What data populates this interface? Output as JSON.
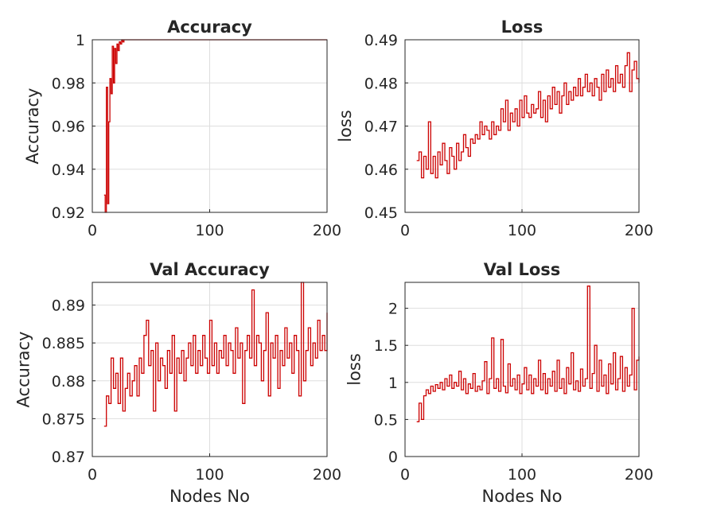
{
  "chart_data": [
    {
      "type": "line",
      "title": "Accuracy",
      "xlabel": "",
      "ylabel": "Accuracy",
      "xlim": [
        0,
        200
      ],
      "ylim": [
        0.92,
        1.0
      ],
      "xticks": [
        0,
        100,
        200
      ],
      "xtick_labels": [
        "0",
        "100",
        "200"
      ],
      "yticks": [
        0.92,
        0.94,
        0.96,
        0.98,
        1.0
      ],
      "ytick_labels": [
        "0.92",
        "0.94",
        "0.96",
        "0.98",
        "1"
      ],
      "grid": true,
      "color": "#cc0000",
      "x": [
        10,
        11,
        12,
        13,
        14,
        15,
        16,
        17,
        18,
        19,
        20,
        21,
        22,
        23,
        24,
        25,
        26,
        27,
        28,
        29,
        30,
        35,
        40,
        50,
        60,
        80,
        100,
        120,
        140,
        160,
        180,
        200
      ],
      "y": [
        0.928,
        0.92,
        0.978,
        0.924,
        0.962,
        0.982,
        0.975,
        0.997,
        0.98,
        0.996,
        0.989,
        0.998,
        0.995,
        0.999,
        0.998,
        1.0,
        0.999,
        1.0,
        1.0,
        1.0,
        1.0,
        1.0,
        1.0,
        1.0,
        1.0,
        1.0,
        1.0,
        1.0,
        1.0,
        1.0,
        1.0,
        1.0
      ]
    },
    {
      "type": "line",
      "title": "Loss",
      "xlabel": "",
      "ylabel": "loss",
      "xlim": [
        0,
        200
      ],
      "ylim": [
        0.45,
        0.49
      ],
      "xticks": [
        0,
        100,
        200
      ],
      "xtick_labels": [
        "0",
        "100",
        "200"
      ],
      "yticks": [
        0.45,
        0.46,
        0.47,
        0.48,
        0.49
      ],
      "ytick_labels": [
        "0.45",
        "0.46",
        "0.47",
        "0.48",
        "0.49"
      ],
      "grid": true,
      "color": "#cc0000",
      "x": [
        10,
        12,
        14,
        16,
        18,
        20,
        22,
        24,
        26,
        28,
        30,
        32,
        34,
        36,
        38,
        40,
        42,
        44,
        46,
        48,
        50,
        52,
        54,
        56,
        58,
        60,
        62,
        64,
        66,
        68,
        70,
        72,
        74,
        76,
        78,
        80,
        82,
        84,
        86,
        88,
        90,
        92,
        94,
        96,
        98,
        100,
        102,
        104,
        106,
        108,
        110,
        112,
        114,
        116,
        118,
        120,
        122,
        124,
        126,
        128,
        130,
        132,
        134,
        136,
        138,
        140,
        142,
        144,
        146,
        148,
        150,
        152,
        154,
        156,
        158,
        160,
        162,
        164,
        166,
        168,
        170,
        172,
        174,
        176,
        178,
        180,
        182,
        184,
        186,
        188,
        190,
        192,
        194,
        196,
        198,
        200
      ],
      "y": [
        0.462,
        0.464,
        0.458,
        0.463,
        0.46,
        0.471,
        0.459,
        0.463,
        0.458,
        0.464,
        0.461,
        0.466,
        0.462,
        0.459,
        0.465,
        0.463,
        0.46,
        0.466,
        0.462,
        0.464,
        0.468,
        0.465,
        0.463,
        0.467,
        0.466,
        0.468,
        0.467,
        0.471,
        0.468,
        0.47,
        0.469,
        0.467,
        0.471,
        0.468,
        0.47,
        0.469,
        0.474,
        0.471,
        0.476,
        0.469,
        0.473,
        0.471,
        0.474,
        0.47,
        0.476,
        0.472,
        0.477,
        0.473,
        0.472,
        0.475,
        0.473,
        0.474,
        0.478,
        0.472,
        0.476,
        0.471,
        0.477,
        0.474,
        0.479,
        0.475,
        0.478,
        0.473,
        0.477,
        0.48,
        0.475,
        0.478,
        0.476,
        0.479,
        0.477,
        0.481,
        0.477,
        0.479,
        0.482,
        0.478,
        0.48,
        0.477,
        0.481,
        0.479,
        0.476,
        0.482,
        0.478,
        0.483,
        0.479,
        0.481,
        0.478,
        0.484,
        0.48,
        0.482,
        0.479,
        0.484,
        0.487,
        0.478,
        0.483,
        0.485,
        0.481,
        0.48
      ]
    },
    {
      "type": "line",
      "title": "Val Accuracy",
      "xlabel": "Nodes No",
      "ylabel": "Accuracy",
      "xlim": [
        0,
        200
      ],
      "ylim": [
        0.87,
        0.893
      ],
      "xticks": [
        0,
        100,
        200
      ],
      "xtick_labels": [
        "0",
        "100",
        "200"
      ],
      "yticks": [
        0.87,
        0.875,
        0.88,
        0.885,
        0.89
      ],
      "ytick_labels": [
        "0.87",
        "0.875",
        "0.88",
        "0.885",
        "0.89"
      ],
      "grid": true,
      "color": "#cc0000",
      "x": [
        10,
        12,
        14,
        16,
        18,
        20,
        22,
        24,
        26,
        28,
        30,
        32,
        34,
        36,
        38,
        40,
        42,
        44,
        46,
        48,
        50,
        52,
        54,
        56,
        58,
        60,
        62,
        64,
        66,
        68,
        70,
        72,
        74,
        76,
        78,
        80,
        82,
        84,
        86,
        88,
        90,
        92,
        94,
        96,
        98,
        100,
        102,
        104,
        106,
        108,
        110,
        112,
        114,
        116,
        118,
        120,
        122,
        124,
        126,
        128,
        130,
        132,
        134,
        136,
        138,
        140,
        142,
        144,
        146,
        148,
        150,
        152,
        154,
        156,
        158,
        160,
        162,
        164,
        166,
        168,
        170,
        172,
        174,
        176,
        178,
        180,
        182,
        184,
        186,
        188,
        190,
        192,
        194,
        196,
        198,
        200
      ],
      "y": [
        0.874,
        0.878,
        0.877,
        0.883,
        0.879,
        0.881,
        0.877,
        0.883,
        0.876,
        0.879,
        0.881,
        0.878,
        0.88,
        0.882,
        0.878,
        0.883,
        0.881,
        0.886,
        0.888,
        0.882,
        0.884,
        0.876,
        0.885,
        0.88,
        0.883,
        0.882,
        0.879,
        0.884,
        0.881,
        0.886,
        0.876,
        0.883,
        0.881,
        0.884,
        0.88,
        0.883,
        0.885,
        0.882,
        0.886,
        0.881,
        0.884,
        0.882,
        0.886,
        0.883,
        0.881,
        0.888,
        0.882,
        0.885,
        0.881,
        0.884,
        0.883,
        0.886,
        0.882,
        0.885,
        0.884,
        0.881,
        0.887,
        0.883,
        0.885,
        0.877,
        0.884,
        0.886,
        0.883,
        0.892,
        0.882,
        0.886,
        0.885,
        0.88,
        0.884,
        0.889,
        0.878,
        0.885,
        0.883,
        0.886,
        0.879,
        0.884,
        0.882,
        0.887,
        0.883,
        0.885,
        0.881,
        0.886,
        0.884,
        0.878,
        0.893,
        0.88,
        0.884,
        0.887,
        0.882,
        0.885,
        0.883,
        0.888,
        0.884,
        0.886,
        0.884,
        0.889
      ]
    },
    {
      "type": "line",
      "title": "Val Loss",
      "xlabel": "Nodes No",
      "ylabel": "loss",
      "xlim": [
        0,
        200
      ],
      "ylim": [
        0,
        2.35
      ],
      "xticks": [
        0,
        100,
        200
      ],
      "xtick_labels": [
        "0",
        "100",
        "200"
      ],
      "yticks": [
        0,
        0.5,
        1,
        1.5,
        2
      ],
      "ytick_labels": [
        "0",
        "0.5",
        "1",
        "1.5",
        "2"
      ],
      "grid": true,
      "color": "#cc0000",
      "x": [
        10,
        12,
        14,
        16,
        18,
        20,
        22,
        24,
        26,
        28,
        30,
        32,
        34,
        36,
        38,
        40,
        42,
        44,
        46,
        48,
        50,
        52,
        54,
        56,
        58,
        60,
        62,
        64,
        66,
        68,
        70,
        72,
        74,
        76,
        78,
        80,
        82,
        84,
        86,
        88,
        90,
        92,
        94,
        96,
        98,
        100,
        102,
        104,
        106,
        108,
        110,
        112,
        114,
        116,
        118,
        120,
        122,
        124,
        126,
        128,
        130,
        132,
        134,
        136,
        138,
        140,
        142,
        144,
        146,
        148,
        150,
        152,
        154,
        156,
        158,
        160,
        162,
        164,
        166,
        168,
        170,
        172,
        174,
        176,
        178,
        180,
        182,
        184,
        186,
        188,
        190,
        192,
        194,
        196,
        198,
        200
      ],
      "y": [
        0.47,
        0.72,
        0.5,
        0.82,
        0.9,
        0.85,
        0.95,
        0.88,
        0.97,
        0.92,
        1.0,
        0.9,
        1.05,
        0.95,
        1.1,
        0.92,
        1.0,
        0.95,
        1.15,
        0.9,
        1.05,
        0.85,
        0.98,
        0.92,
        1.12,
        0.88,
        0.95,
        0.9,
        1.02,
        1.28,
        0.85,
        1.05,
        1.6,
        0.92,
        1.05,
        0.88,
        1.58,
        0.95,
        0.86,
        1.25,
        0.95,
        1.05,
        0.9,
        1.1,
        0.85,
        0.98,
        1.2,
        0.9,
        1.1,
        0.85,
        1.05,
        0.95,
        1.3,
        0.9,
        1.12,
        0.85,
        1.05,
        0.95,
        1.15,
        0.88,
        1.3,
        0.92,
        1.05,
        0.85,
        1.2,
        0.98,
        1.4,
        0.9,
        1.02,
        0.88,
        1.18,
        0.95,
        1.05,
        2.3,
        0.92,
        1.12,
        1.5,
        0.88,
        1.3,
        0.95,
        1.1,
        0.85,
        1.25,
        0.98,
        1.4,
        0.9,
        1.05,
        1.35,
        0.88,
        1.2,
        0.95,
        1.1,
        2.0,
        0.9,
        1.3,
        1.35
      ]
    }
  ]
}
